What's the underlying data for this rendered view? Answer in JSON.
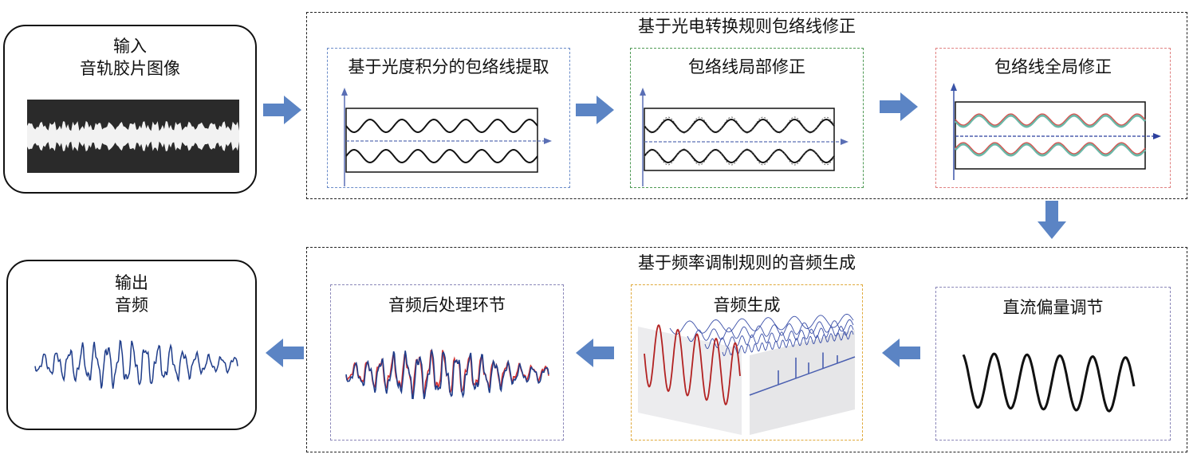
{
  "input_box": {
    "title": "输入",
    "subtitle": "音轨胶片图像"
  },
  "output_box": {
    "title": "输出",
    "subtitle": "音频"
  },
  "group_top": {
    "title": "基于光电转换规则包络线修正",
    "steps": [
      {
        "title": "基于光度积分的包络线提取"
      },
      {
        "title": "包络线局部修正"
      },
      {
        "title": "包络线全局修正"
      }
    ]
  },
  "group_bottom": {
    "title": "基于频率调制规则的音频生成",
    "steps": [
      {
        "title": "直流偏量调节"
      },
      {
        "title": "音频生成"
      },
      {
        "title": "音频后处理环节"
      }
    ]
  },
  "colors": {
    "arrow": "#5b84c4",
    "axis": "#5a6fb5",
    "envelope_red": "#d9534f",
    "envelope_teal": "#6bb8a8",
    "audio_blue": "#1f3d8a",
    "audio_red": "#d32f2f"
  }
}
